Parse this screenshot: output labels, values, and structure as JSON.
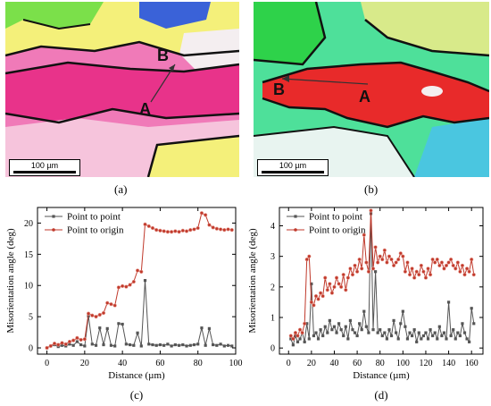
{
  "maps": [
    {
      "letter": "(a)",
      "scalebar": "100 µm",
      "point_start": "A",
      "point_end": "B",
      "colors": {
        "bg": "#f07ab8",
        "band": "#e8338a",
        "green": "#7be04a",
        "yellow": "#f4f07a",
        "blue": "#3a62d8",
        "white": "#f4eef0",
        "boundary": "#111111"
      }
    },
    {
      "letter": "(b)",
      "scalebar": "100 µm",
      "point_start": "A",
      "point_end": "B",
      "colors": {
        "bg": "#4ee09a",
        "band": "#e82a2a",
        "green": "#2ed24a",
        "yellow": "#d8ea8a",
        "blue": "#4ac6e0",
        "white": "#e8f4f0",
        "boundary": "#111111"
      }
    }
  ],
  "chart_data": [
    {
      "type": "line",
      "panel_label": "(c)",
      "xlabel": "Distance (µm)",
      "ylabel": "Misorientation angle (deg)",
      "xlim": [
        -5,
        100
      ],
      "ylim": [
        -1,
        22.5
      ],
      "xticks": [
        0,
        20,
        40,
        60,
        80,
        100
      ],
      "yticks": [
        0,
        5,
        10,
        15,
        20
      ],
      "legend_position": "top-left",
      "grid": false,
      "series": [
        {
          "name": "Point to point",
          "color": "#555555",
          "x": [
            0,
            2,
            4,
            6,
            8,
            10,
            12,
            14,
            16,
            18,
            20,
            22,
            24,
            26,
            28,
            30,
            32,
            34,
            36,
            38,
            40,
            42,
            44,
            46,
            48,
            50,
            52,
            54,
            56,
            58,
            60,
            62,
            64,
            66,
            68,
            70,
            72,
            74,
            76,
            78,
            80,
            82,
            84,
            86,
            88,
            90,
            92,
            94,
            96,
            98
          ],
          "y": [
            0,
            0.3,
            0.5,
            0.2,
            0.4,
            0.3,
            0.6,
            0.4,
            1.0,
            0.5,
            0.3,
            5.1,
            0.6,
            0.4,
            3.2,
            0.5,
            3.1,
            0.4,
            0.3,
            3.9,
            3.8,
            0.6,
            0.5,
            0.4,
            2.4,
            0.3,
            10.8,
            0.6,
            0.5,
            0.4,
            0.5,
            0.4,
            0.6,
            0.3,
            0.5,
            0.4,
            0.5,
            0.3,
            0.4,
            0.5,
            0.6,
            3.2,
            0.4,
            3.1,
            0.5,
            0.4,
            0.6,
            0.3,
            0.4,
            0.3
          ]
        },
        {
          "name": "Point to origin",
          "color": "#c0392b",
          "x": [
            0,
            2,
            4,
            6,
            8,
            10,
            12,
            14,
            16,
            18,
            20,
            22,
            24,
            26,
            28,
            30,
            32,
            34,
            36,
            38,
            40,
            42,
            44,
            46,
            48,
            50,
            52,
            54,
            56,
            58,
            60,
            62,
            64,
            66,
            68,
            70,
            72,
            74,
            76,
            78,
            80,
            82,
            84,
            86,
            88,
            90,
            92,
            94,
            96,
            98
          ],
          "y": [
            0,
            0.3,
            0.7,
            0.5,
            0.8,
            0.6,
            1.0,
            1.2,
            1.6,
            1.3,
            1.4,
            5.5,
            5.2,
            5.0,
            5.3,
            5.6,
            7.2,
            7.0,
            6.8,
            9.7,
            9.9,
            9.8,
            10.1,
            10.6,
            12.4,
            12.2,
            19.8,
            19.5,
            19.2,
            18.9,
            18.8,
            18.7,
            18.6,
            18.6,
            18.7,
            18.6,
            18.8,
            18.7,
            18.9,
            19.0,
            19.2,
            21.6,
            21.3,
            19.7,
            19.3,
            19.1,
            19.0,
            18.9,
            19.0,
            18.9
          ]
        }
      ]
    },
    {
      "type": "line",
      "panel_label": "(d)",
      "xlabel": "Distance (µm)",
      "ylabel": "Misorientation angle (deg)",
      "xlim": [
        -8,
        170
      ],
      "ylim": [
        -0.2,
        4.6
      ],
      "xticks": [
        0,
        20,
        40,
        60,
        80,
        100,
        120,
        140,
        160
      ],
      "yticks": [
        0,
        1,
        2,
        3,
        4
      ],
      "legend_position": "top-left",
      "grid": false,
      "series": [
        {
          "name": "Point to point",
          "color": "#555555",
          "x": [
            2,
            4,
            6,
            8,
            10,
            12,
            14,
            16,
            18,
            20,
            22,
            24,
            26,
            28,
            30,
            32,
            34,
            36,
            38,
            40,
            42,
            44,
            46,
            48,
            50,
            52,
            54,
            56,
            58,
            60,
            62,
            64,
            66,
            68,
            70,
            72,
            74,
            76,
            78,
            80,
            82,
            84,
            86,
            88,
            90,
            92,
            94,
            96,
            98,
            100,
            102,
            104,
            106,
            108,
            110,
            112,
            114,
            116,
            118,
            120,
            122,
            124,
            126,
            128,
            130,
            132,
            134,
            136,
            138,
            140,
            142,
            144,
            146,
            148,
            150,
            152,
            154,
            156,
            158,
            160,
            162
          ],
          "y": [
            0.3,
            0.1,
            0.4,
            0.2,
            0.3,
            0.5,
            0.2,
            0.8,
            0.3,
            2.1,
            0.4,
            0.5,
            0.3,
            0.6,
            0.4,
            0.7,
            0.5,
            0.9,
            0.6,
            0.7,
            0.5,
            0.8,
            0.6,
            0.4,
            0.7,
            0.3,
            0.9,
            0.6,
            0.5,
            0.4,
            0.8,
            0.6,
            1.2,
            0.7,
            0.5,
            4.4,
            0.6,
            2.5,
            0.5,
            0.6,
            0.4,
            0.5,
            0.3,
            0.6,
            0.4,
            0.9,
            0.5,
            0.3,
            0.8,
            1.2,
            0.7,
            0.3,
            0.5,
            0.4,
            0.6,
            0.2,
            0.5,
            0.3,
            0.4,
            0.5,
            0.3,
            0.6,
            0.4,
            0.5,
            0.3,
            0.7,
            0.4,
            0.5,
            0.3,
            1.5,
            0.4,
            0.6,
            0.3,
            0.5,
            0.4,
            0.8,
            0.5,
            0.3,
            0.2,
            1.3,
            0.8
          ]
        },
        {
          "name": "Point to origin",
          "color": "#c0392b",
          "x": [
            2,
            4,
            6,
            8,
            10,
            12,
            14,
            16,
            18,
            20,
            22,
            24,
            26,
            28,
            30,
            32,
            34,
            36,
            38,
            40,
            42,
            44,
            46,
            48,
            50,
            52,
            54,
            56,
            58,
            60,
            62,
            64,
            66,
            68,
            70,
            72,
            74,
            76,
            78,
            80,
            82,
            84,
            86,
            88,
            90,
            92,
            94,
            96,
            98,
            100,
            102,
            104,
            106,
            108,
            110,
            112,
            114,
            116,
            118,
            120,
            122,
            124,
            126,
            128,
            130,
            132,
            134,
            136,
            138,
            140,
            142,
            144,
            146,
            148,
            150,
            152,
            154,
            156,
            158,
            160,
            162
          ],
          "y": [
            0.4,
            0.3,
            0.5,
            0.4,
            0.6,
            0.5,
            0.8,
            2.9,
            3.0,
            1.5,
            1.4,
            1.7,
            1.6,
            1.8,
            1.7,
            2.3,
            1.9,
            2.1,
            1.8,
            2.0,
            2.3,
            2.1,
            2.0,
            2.4,
            1.9,
            2.3,
            2.6,
            2.4,
            2.7,
            2.5,
            2.9,
            2.6,
            3.7,
            2.8,
            2.5,
            4.5,
            2.6,
            3.3,
            2.8,
            3.0,
            2.9,
            3.2,
            2.8,
            3.0,
            2.9,
            2.7,
            2.8,
            2.9,
            3.1,
            3.0,
            2.5,
            2.8,
            2.4,
            2.6,
            2.3,
            2.5,
            2.4,
            2.7,
            2.5,
            2.3,
            2.6,
            2.4,
            2.9,
            2.8,
            2.9,
            2.7,
            2.8,
            2.6,
            2.7,
            2.8,
            2.9,
            2.7,
            2.6,
            2.8,
            2.5,
            2.7,
            2.4,
            2.6,
            2.5,
            2.9,
            2.4
          ]
        }
      ]
    }
  ]
}
